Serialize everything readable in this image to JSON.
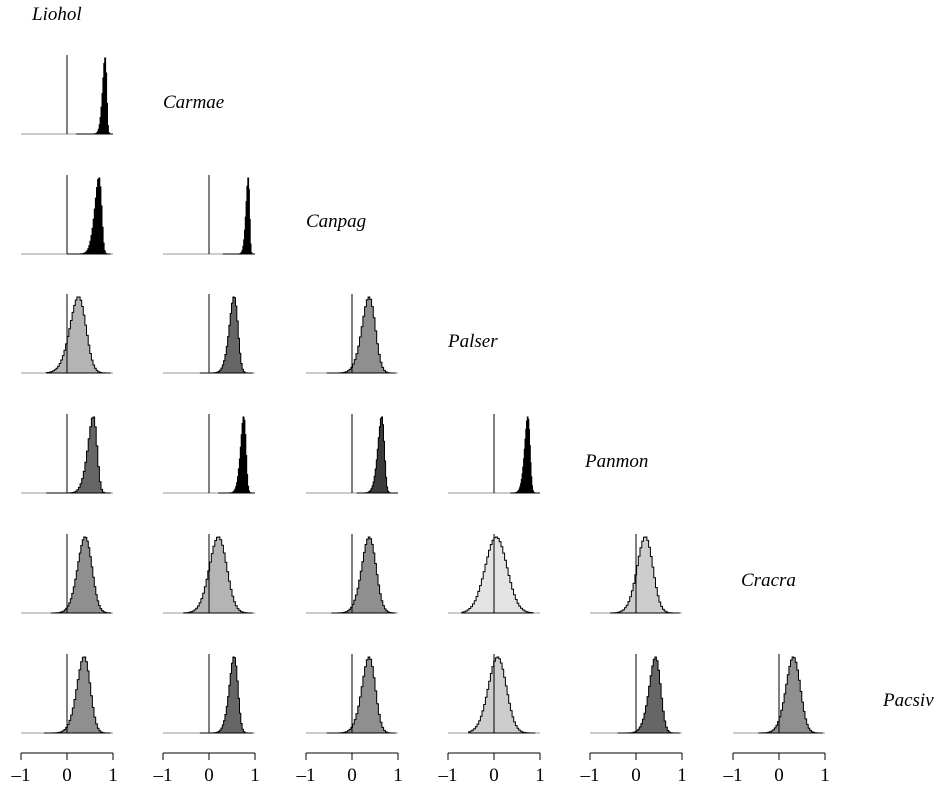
{
  "chart_data": {
    "type": "histogram-matrix",
    "species": [
      "Liohol",
      "Carmae",
      "Canpag",
      "Palser",
      "Panmon",
      "Cracra",
      "Pacsiv"
    ],
    "xlim": [
      -1,
      1
    ],
    "x_ticks": [
      {
        "value": -1,
        "label": "–1"
      },
      {
        "value": 0,
        "label": "0"
      },
      {
        "value": 1,
        "label": "1"
      }
    ],
    "fill_levels": {
      "black": "#000000",
      "dark": "#3a3a3a",
      "medium-dark": "#666666",
      "medium": "#8f8f8f",
      "light": "#b4b4b4",
      "lighter": "#cdcdcd",
      "lightest": "#e3e3e3"
    },
    "cells": [
      {
        "row_species": "Carmae",
        "col_species": "Liohol",
        "mode": 0.86,
        "sd": 0.07,
        "skew": -3,
        "min": 0.2,
        "max": 1.0,
        "fill": "black"
      },
      {
        "row_species": "Canpag",
        "col_species": "Liohol",
        "mode": 0.75,
        "sd": 0.12,
        "skew": -3,
        "min": 0.0,
        "max": 0.95,
        "fill": "black"
      },
      {
        "row_species": "Canpag",
        "col_species": "Carmae",
        "mode": 0.88,
        "sd": 0.06,
        "skew": -3,
        "min": 0.3,
        "max": 1.0,
        "fill": "black"
      },
      {
        "row_species": "Palser",
        "col_species": "Liohol",
        "mode": 0.38,
        "sd": 0.24,
        "skew": -1.5,
        "min": -0.45,
        "max": 0.95,
        "fill": "light"
      },
      {
        "row_species": "Palser",
        "col_species": "Carmae",
        "mode": 0.62,
        "sd": 0.14,
        "skew": -2,
        "min": -0.2,
        "max": 0.95,
        "fill": "medium-dark"
      },
      {
        "row_species": "Palser",
        "col_species": "Canpag",
        "mode": 0.48,
        "sd": 0.2,
        "skew": -1.5,
        "min": -0.55,
        "max": 0.95,
        "fill": "medium"
      },
      {
        "row_species": "Panmon",
        "col_species": "Liohol",
        "mode": 0.65,
        "sd": 0.16,
        "skew": -2.5,
        "min": -0.45,
        "max": 0.95,
        "fill": "medium-dark"
      },
      {
        "row_species": "Panmon",
        "col_species": "Carmae",
        "mode": 0.8,
        "sd": 0.09,
        "skew": -2.5,
        "min": 0.2,
        "max": 1.0,
        "fill": "black"
      },
      {
        "row_species": "Panmon",
        "col_species": "Canpag",
        "mode": 0.7,
        "sd": 0.11,
        "skew": -2.5,
        "min": 0.1,
        "max": 1.0,
        "fill": "dark"
      },
      {
        "row_species": "Panmon",
        "col_species": "Palser",
        "mode": 0.78,
        "sd": 0.09,
        "skew": -2.5,
        "min": 0.35,
        "max": 1.0,
        "fill": "black"
      },
      {
        "row_species": "Cracra",
        "col_species": "Liohol",
        "mode": 0.5,
        "sd": 0.2,
        "skew": -1.2,
        "min": -0.35,
        "max": 0.95,
        "fill": "medium"
      },
      {
        "row_species": "Cracra",
        "col_species": "Carmae",
        "mode": 0.32,
        "sd": 0.23,
        "skew": -1,
        "min": -0.55,
        "max": 0.95,
        "fill": "light"
      },
      {
        "row_species": "Cracra",
        "col_species": "Canpag",
        "mode": 0.48,
        "sd": 0.2,
        "skew": -1.2,
        "min": -0.45,
        "max": 0.95,
        "fill": "medium"
      },
      {
        "row_species": "Cracra",
        "col_species": "Palser",
        "mode": 0.15,
        "sd": 0.26,
        "skew": -0.6,
        "min": -0.7,
        "max": 0.85,
        "fill": "lightest"
      },
      {
        "row_species": "Cracra",
        "col_species": "Panmon",
        "mode": 0.32,
        "sd": 0.22,
        "skew": -1.2,
        "min": -0.55,
        "max": 0.95,
        "fill": "lighter"
      },
      {
        "row_species": "Pacsiv",
        "col_species": "Liohol",
        "mode": 0.48,
        "sd": 0.2,
        "skew": -1.5,
        "min": -0.5,
        "max": 0.95,
        "fill": "medium"
      },
      {
        "row_species": "Pacsiv",
        "col_species": "Carmae",
        "mode": 0.62,
        "sd": 0.14,
        "skew": -2,
        "min": -0.2,
        "max": 0.95,
        "fill": "medium-dark"
      },
      {
        "row_species": "Pacsiv",
        "col_species": "Canpag",
        "mode": 0.48,
        "sd": 0.2,
        "skew": -1.5,
        "min": -0.55,
        "max": 0.95,
        "fill": "medium"
      },
      {
        "row_species": "Pacsiv",
        "col_species": "Palser",
        "mode": 0.2,
        "sd": 0.24,
        "skew": -1,
        "min": -0.55,
        "max": 0.9,
        "fill": "lighter"
      },
      {
        "row_species": "Pacsiv",
        "col_species": "Panmon",
        "mode": 0.52,
        "sd": 0.18,
        "skew": -1.8,
        "min": -0.4,
        "max": 0.95,
        "fill": "medium-dark"
      },
      {
        "row_species": "Pacsiv",
        "col_species": "Cracra",
        "mode": 0.42,
        "sd": 0.2,
        "skew": -1.2,
        "min": -0.45,
        "max": 0.95,
        "fill": "medium"
      }
    ]
  }
}
